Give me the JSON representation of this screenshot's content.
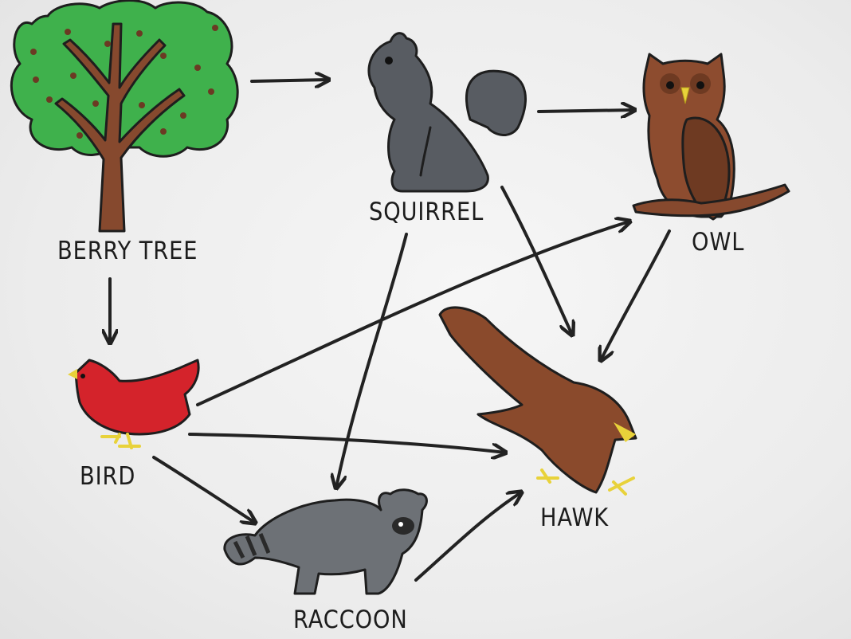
{
  "organisms": {
    "berry_tree": "BERRY TREE",
    "squirrel": "SQUIRREL",
    "owl": "OWL",
    "bird": "BIRD",
    "hawk": "HAWK",
    "raccoon": "RACCOON"
  },
  "colors": {
    "leaves": "#3fb14c",
    "trunk": "#86492e",
    "berry": "#6b3a23",
    "squirrel": "#585c62",
    "owl": "#8d4c2f",
    "owl_wing": "#6e3a22",
    "bird": "#d4232b",
    "hawk": "#8a4a2c",
    "raccoon": "#6d7176",
    "beak_feet": "#e8d23a",
    "ink": "#1e1e1e"
  },
  "food_web": [
    {
      "from": "BERRY TREE",
      "to": "SQUIRREL"
    },
    {
      "from": "BERRY TREE",
      "to": "BIRD"
    },
    {
      "from": "SQUIRREL",
      "to": "OWL"
    },
    {
      "from": "SQUIRREL",
      "to": "HAWK"
    },
    {
      "from": "SQUIRREL",
      "to": "RACCOON"
    },
    {
      "from": "OWL",
      "to": "HAWK"
    },
    {
      "from": "BIRD",
      "to": "OWL"
    },
    {
      "from": "BIRD",
      "to": "HAWK"
    },
    {
      "from": "BIRD",
      "to": "RACCOON"
    },
    {
      "from": "RACCOON",
      "to": "HAWK"
    }
  ]
}
